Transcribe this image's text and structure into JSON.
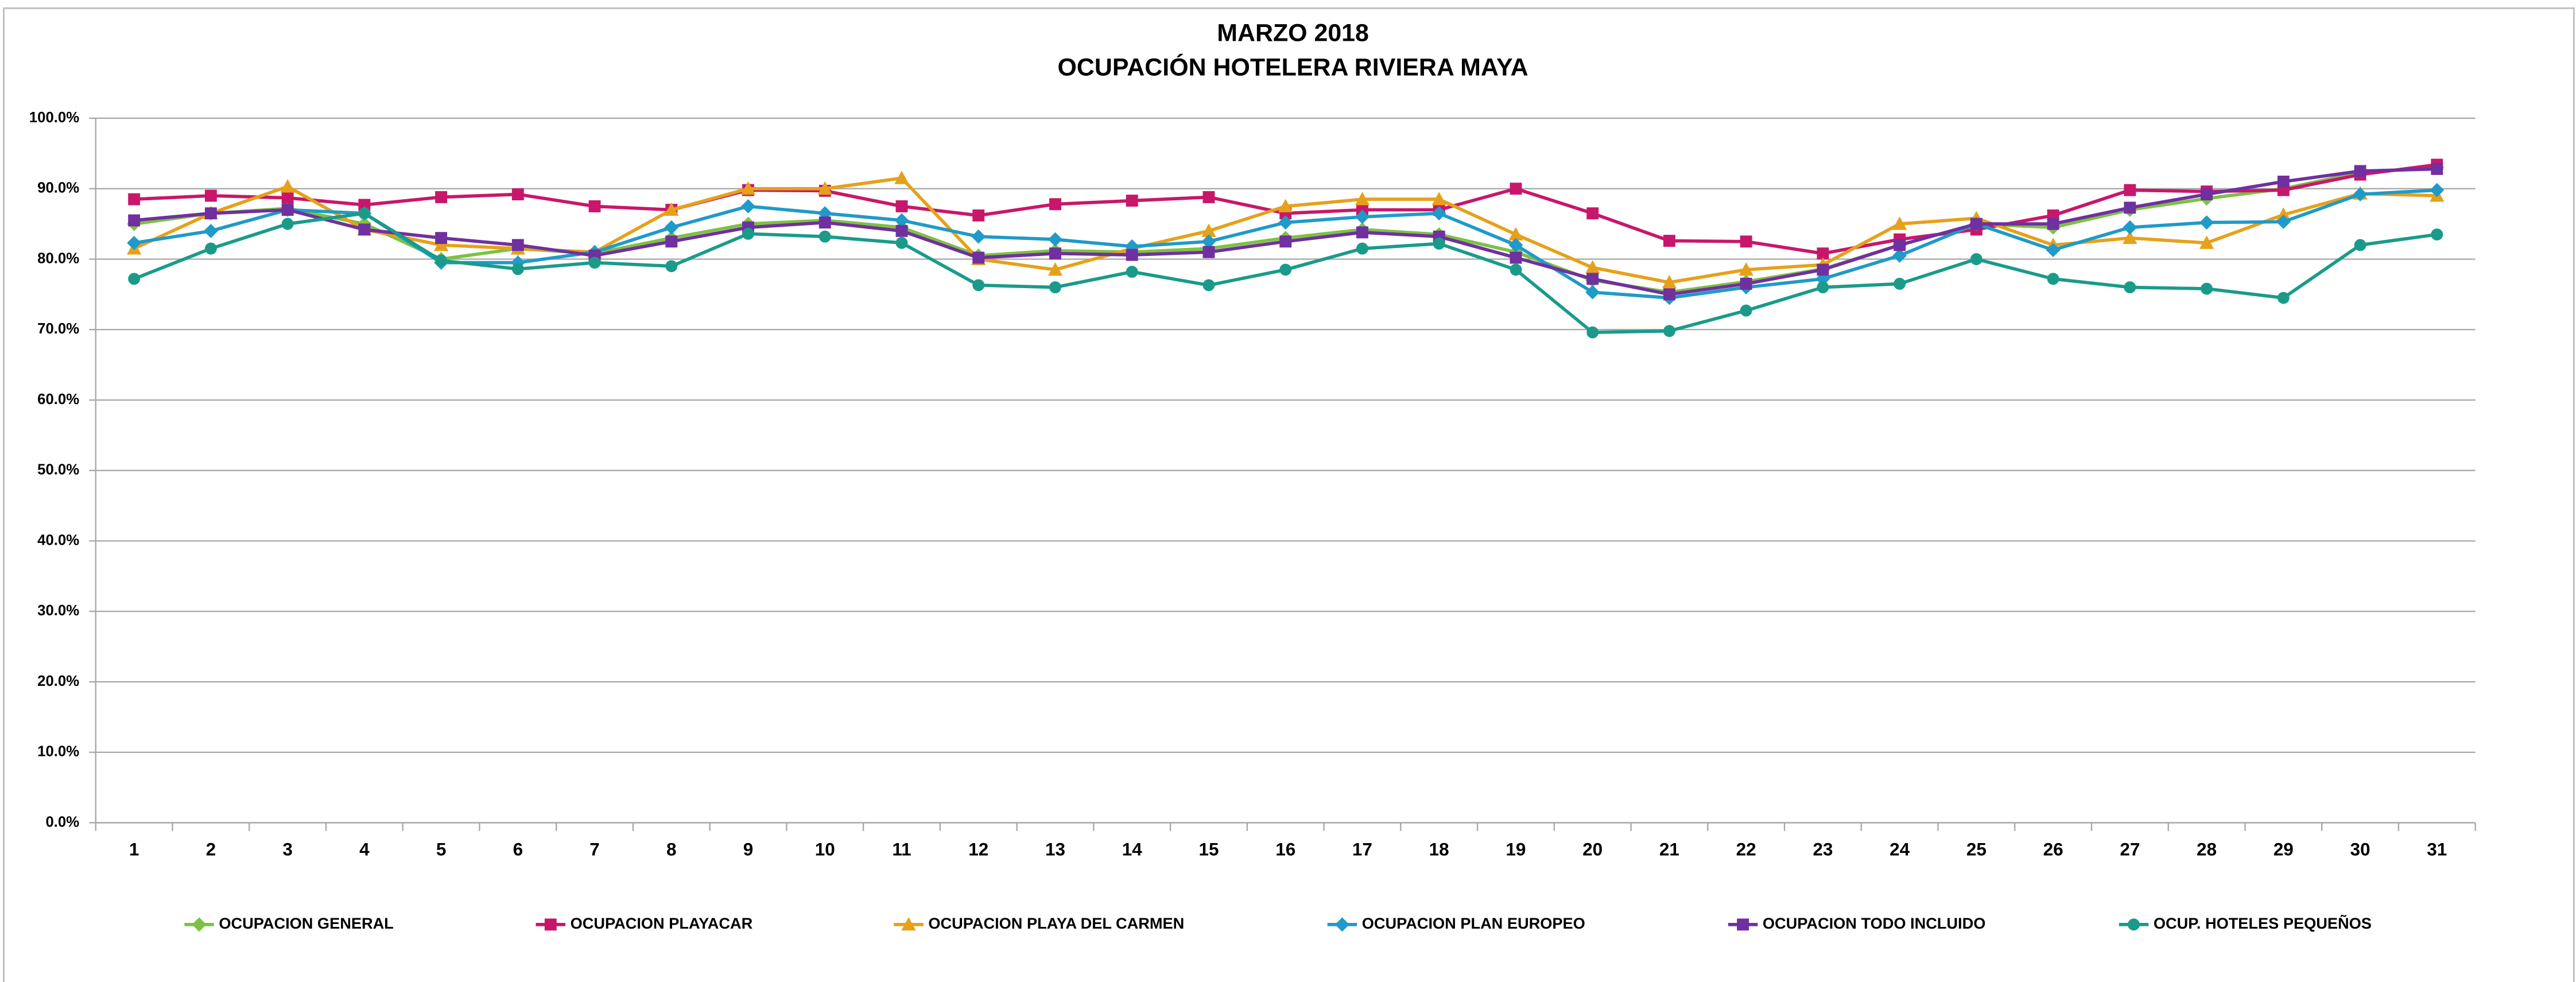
{
  "chart_data": {
    "type": "line",
    "title": "MARZO  2018",
    "subtitle": "OCUPACIÓN HOTELERA RIVIERA MAYA",
    "categories": [
      "1",
      "2",
      "3",
      "4",
      "5",
      "6",
      "7",
      "8",
      "9",
      "10",
      "11",
      "12",
      "13",
      "14",
      "15",
      "16",
      "17",
      "18",
      "19",
      "20",
      "21",
      "22",
      "23",
      "24",
      "25",
      "26",
      "27",
      "28",
      "29",
      "30",
      "31"
    ],
    "ylim": [
      0,
      100
    ],
    "yticks": [
      {
        "value": 0,
        "label": "0.0%"
      },
      {
        "value": 10,
        "label": "10.0%"
      },
      {
        "value": 20,
        "label": "20.0%"
      },
      {
        "value": 30,
        "label": "30.0%"
      },
      {
        "value": 40,
        "label": "40.0%"
      },
      {
        "value": 50,
        "label": "50.0%"
      },
      {
        "value": 60,
        "label": "60.0%"
      },
      {
        "value": 70,
        "label": "70.0%"
      },
      {
        "value": 80,
        "label": "80.0%"
      },
      {
        "value": 90,
        "label": "90.0%"
      },
      {
        "value": 100,
        "label": "100.0%"
      }
    ],
    "grid": true,
    "legend": "bottom",
    "series": [
      {
        "name": "OCUPACION GENERAL",
        "color": "#7dc242",
        "marker": "diamond",
        "values": [
          85,
          86.5,
          87.2,
          85,
          80,
          81.5,
          80.8,
          83,
          85,
          85.5,
          84.5,
          80.5,
          81.2,
          81,
          81.5,
          83,
          84.2,
          83.5,
          81,
          77,
          75.3,
          76.8,
          78.6,
          82,
          85,
          84.5,
          87,
          88.6,
          90,
          92.3,
          93
        ]
      },
      {
        "name": "OCUPACION PLAYACAR",
        "color": "#c8176b",
        "marker": "square",
        "values": [
          88.5,
          89,
          88.7,
          87.7,
          88.8,
          89.2,
          87.5,
          87,
          89.8,
          89.7,
          87.5,
          86.2,
          87.8,
          88.3,
          88.8,
          86.5,
          87,
          87,
          90,
          86.5,
          82.6,
          82.5,
          80.8,
          82.8,
          84.2,
          86.2,
          89.8,
          89.6,
          89.8,
          92,
          93.4
        ]
      },
      {
        "name": "OCUPACION PLAYA DEL CARMEN",
        "color": "#e6a11a",
        "marker": "triangle",
        "values": [
          81.5,
          86.5,
          90.3,
          84.2,
          82,
          81.5,
          81,
          87,
          90,
          90,
          91.5,
          80,
          78.5,
          81.5,
          84,
          87.5,
          88.5,
          88.5,
          83.5,
          78.8,
          76.7,
          78.5,
          79.2,
          85,
          85.8,
          82,
          83,
          82.3,
          86.3,
          89.3,
          89
        ]
      },
      {
        "name": "OCUPACION PLAN EUROPEO",
        "color": "#1f9ac9",
        "marker": "diamond",
        "values": [
          82.3,
          84,
          87,
          86.5,
          79.5,
          79.5,
          81,
          84.5,
          87.5,
          86.5,
          85.5,
          83.2,
          82.8,
          81.8,
          82.5,
          85.2,
          86,
          86.5,
          82,
          75.3,
          74.5,
          76,
          77.2,
          80.5,
          85,
          81.3,
          84.5,
          85.2,
          85.3,
          89.2,
          89.8
        ]
      },
      {
        "name": "OCUPACION TODO INCLUIDO",
        "color": "#7030a0",
        "marker": "square",
        "values": [
          85.5,
          86.5,
          87,
          84.2,
          83,
          82,
          80.5,
          82.5,
          84.5,
          85.2,
          84,
          80.2,
          80.8,
          80.6,
          81,
          82.5,
          83.8,
          83.2,
          80.2,
          77.2,
          75,
          76.5,
          78.5,
          82,
          85,
          85,
          87.3,
          89.2,
          91,
          92.5,
          92.8
        ]
      },
      {
        "name": "OCUP. HOTELES PEQUEÑOS",
        "color": "#1a9b8a",
        "marker": "circle",
        "values": [
          77.2,
          81.5,
          85,
          86.5,
          79.8,
          78.6,
          79.5,
          79,
          83.6,
          83.2,
          82.3,
          76.3,
          76,
          78.2,
          76.3,
          78.5,
          81.5,
          82.2,
          78.5,
          69.6,
          69.8,
          72.7,
          76,
          76.5,
          80,
          77.2,
          76,
          75.8,
          74.5,
          82,
          83.5
        ]
      }
    ]
  }
}
